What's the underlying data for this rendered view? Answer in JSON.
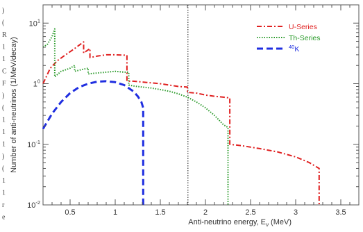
{
  "chart_data": {
    "type": "line",
    "title": "",
    "xlabel": "Anti-neutrino energy, E",
    "xlabel_sub": "ν",
    "xlabel_unit": " (MeV)",
    "ylabel": "Number of anti-neutrinos (1/MeV/decay)",
    "xlim": [
      0.2,
      3.7
    ],
    "ylim": [
      0.01,
      20
    ],
    "y_scale": "log",
    "x_ticks": [
      0.5,
      1,
      1.5,
      2,
      2.5,
      3,
      3.5
    ],
    "x_tick_labels": [
      "0.5",
      "1",
      "1.5",
      "2",
      "2.5",
      "3",
      "3.5"
    ],
    "y_ticks": [
      0.01,
      0.1,
      1,
      10
    ],
    "y_tick_labels": [
      {
        "base": "10",
        "exp": "-2"
      },
      {
        "base": "10",
        "exp": "-1"
      },
      {
        "base": "1",
        "exp": "0"
      },
      {
        "base": "10",
        "exp": "1"
      }
    ],
    "reference_line_x": 1.806,
    "grid": false,
    "legend_position": "top-right",
    "series": [
      {
        "name": "U-Series",
        "color": "#e02020",
        "dash": "dashdot",
        "x": [
          0.2,
          0.28,
          0.36,
          0.45,
          0.55,
          0.65,
          0.65,
          0.72,
          0.72,
          0.8,
          0.9,
          1.0,
          1.13,
          1.13,
          1.2,
          1.35,
          1.5,
          1.6,
          1.7,
          1.8,
          1.8,
          1.9,
          2.0,
          2.1,
          2.2,
          2.27,
          2.27,
          2.4,
          2.6,
          2.8,
          3.0,
          3.15,
          3.26,
          3.26
        ],
        "y": [
          1.0,
          1.8,
          2.4,
          3.0,
          3.8,
          4.9,
          3.2,
          3.8,
          2.7,
          2.85,
          3.0,
          3.0,
          2.95,
          1.1,
          1.1,
          1.05,
          1.0,
          0.95,
          0.9,
          0.88,
          0.72,
          0.7,
          0.65,
          0.62,
          0.6,
          0.58,
          0.1,
          0.095,
          0.085,
          0.075,
          0.062,
          0.05,
          0.04,
          0.01
        ]
      },
      {
        "name": "Th-Series",
        "color": "#2a9a2a",
        "dash": "dotted",
        "x": [
          0.2,
          0.25,
          0.3,
          0.33,
          0.33,
          0.4,
          0.5,
          0.55,
          0.55,
          0.62,
          0.7,
          0.7,
          0.8,
          0.9,
          1.0,
          1.1,
          1.15,
          1.15,
          1.2,
          1.3,
          1.4,
          1.5,
          1.6,
          1.7,
          1.8,
          1.9,
          2.0,
          2.1,
          2.2,
          2.25,
          2.25
        ],
        "y": [
          4.0,
          4.5,
          6.0,
          8.0,
          1.3,
          1.6,
          1.8,
          2.0,
          1.6,
          1.7,
          1.8,
          1.45,
          1.5,
          1.55,
          1.6,
          1.55,
          1.55,
          0.95,
          0.92,
          0.88,
          0.85,
          0.8,
          0.75,
          0.68,
          0.6,
          0.5,
          0.4,
          0.3,
          0.21,
          0.19,
          0.01
        ]
      },
      {
        "name": "40K",
        "label_sup": "40",
        "label_main": "K",
        "color": "#1f2ee0",
        "dash": "dashed",
        "x": [
          0.2,
          0.3,
          0.4,
          0.5,
          0.6,
          0.7,
          0.8,
          0.9,
          1.0,
          1.1,
          1.2,
          1.25,
          1.29,
          1.31,
          1.31
        ],
        "y": [
          0.18,
          0.32,
          0.5,
          0.7,
          0.88,
          1.0,
          1.08,
          1.1,
          1.06,
          0.95,
          0.75,
          0.62,
          0.5,
          0.4,
          0.01
        ]
      }
    ]
  },
  "left_margin_chars": [
    ")",
    "(",
    "R",
    "1",
    "1",
    "C",
    "F",
    ")",
    "(",
    "1",
    "1",
    "1",
    ")",
    "(",
    "1",
    "1",
    "r",
    "e"
  ]
}
